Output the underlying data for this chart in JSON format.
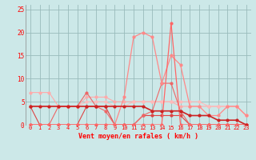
{
  "x": [
    0,
    1,
    2,
    3,
    4,
    5,
    6,
    7,
    8,
    9,
    10,
    11,
    12,
    13,
    14,
    15,
    16,
    17,
    18,
    19,
    20,
    21,
    22,
    23
  ],
  "lines": [
    {
      "y": [
        4,
        4,
        4,
        4,
        4,
        4,
        4,
        4,
        4,
        4,
        4,
        4,
        4,
        3,
        3,
        3,
        3,
        2,
        2,
        2,
        1,
        1,
        1,
        0
      ],
      "color": "#cc2222",
      "lw": 1.2,
      "zorder": 5
    },
    {
      "y": [
        4,
        0,
        0,
        0,
        0,
        0,
        4,
        4,
        4,
        0,
        0,
        0,
        2,
        2,
        2,
        2,
        2,
        0,
        0,
        0,
        0,
        0,
        0,
        0
      ],
      "color": "#dd4444",
      "lw": 0.8,
      "zorder": 4
    },
    {
      "y": [
        0,
        0,
        0,
        4,
        4,
        4,
        7,
        4,
        3,
        0,
        0,
        0,
        2,
        3,
        9,
        9,
        3,
        0,
        0,
        0,
        0,
        0,
        0,
        0
      ],
      "color": "#ee6666",
      "lw": 0.8,
      "zorder": 4
    },
    {
      "y": [
        7,
        7,
        7,
        4,
        4,
        4,
        6,
        6,
        6,
        5,
        5,
        5,
        5,
        5,
        5,
        5,
        4,
        4,
        4,
        4,
        4,
        4,
        4,
        2
      ],
      "color": "#ffaaaa",
      "lw": 0.8,
      "zorder": 3
    },
    {
      "y": [
        4,
        4,
        4,
        4,
        4,
        4,
        5,
        5,
        5,
        4,
        4,
        5,
        5,
        5,
        5,
        5,
        5,
        5,
        5,
        4,
        4,
        4,
        4,
        2
      ],
      "color": "#ffbbbb",
      "lw": 0.8,
      "zorder": 3
    },
    {
      "y": [
        0,
        0,
        0,
        0,
        0,
        0,
        0,
        0,
        0,
        0,
        6,
        19,
        20,
        19,
        9,
        15,
        13,
        4,
        4,
        2,
        2,
        4,
        4,
        2
      ],
      "color": "#ff8888",
      "lw": 0.9,
      "zorder": 4
    },
    {
      "y": [
        0,
        0,
        0,
        0,
        0,
        0,
        0,
        0,
        0,
        0,
        0,
        0,
        0,
        0,
        0,
        22,
        0,
        0,
        0,
        0,
        0,
        0,
        0,
        0
      ],
      "color": "#ff6666",
      "lw": 0.9,
      "zorder": 4
    }
  ],
  "bg_color": "#cce8e8",
  "grid_color": "#99bbbb",
  "xlabel": "Vent moyen/en rafales ( km/h )",
  "ylim": [
    0,
    26
  ],
  "xlim": [
    -0.5,
    23.5
  ],
  "yticks": [
    0,
    5,
    10,
    15,
    20,
    25
  ],
  "xticks": [
    0,
    1,
    2,
    3,
    4,
    5,
    6,
    7,
    8,
    9,
    10,
    11,
    12,
    13,
    14,
    15,
    16,
    17,
    18,
    19,
    20,
    21,
    22,
    23
  ]
}
